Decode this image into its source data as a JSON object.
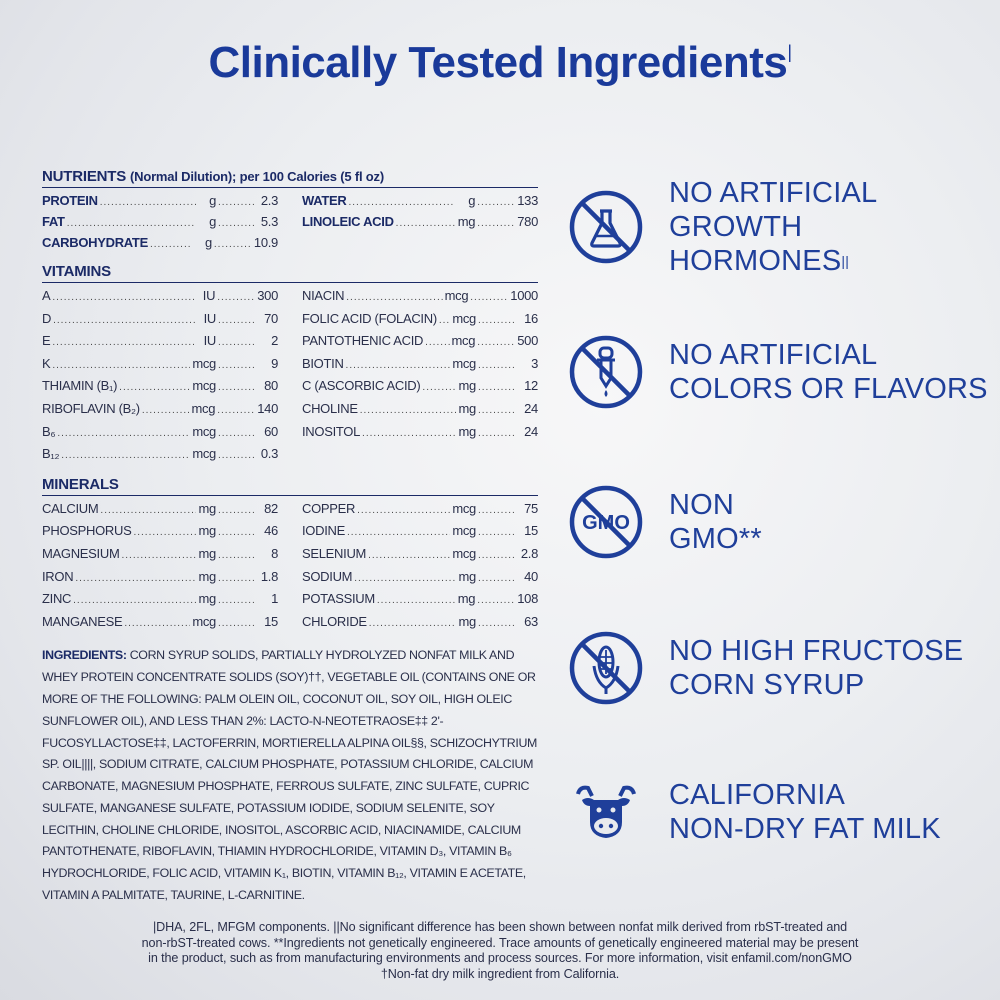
{
  "title": "Clinically Tested Ingredients",
  "title_mark": "|",
  "nutrients": {
    "heading": "NUTRIENTS",
    "subheading": "(Normal Dilution); per 100 Calories (5 fl oz)",
    "left": [
      {
        "name": "PROTEIN",
        "unit": "g",
        "value": "2.3"
      },
      {
        "name": "FAT",
        "unit": "g",
        "value": "5.3"
      },
      {
        "name": "CARBOHYDRATE",
        "unit": "g",
        "value": "10.9"
      }
    ],
    "right": [
      {
        "name": "WATER",
        "unit": "g",
        "value": "133"
      },
      {
        "name": "LINOLEIC ACID",
        "unit": "mg",
        "value": "780"
      }
    ]
  },
  "vitamins": {
    "heading": "VITAMINS",
    "left": [
      {
        "name": "A",
        "unit": "IU",
        "value": "300"
      },
      {
        "name": "D",
        "unit": "IU",
        "value": "70"
      },
      {
        "name": "E",
        "unit": "IU",
        "value": "2"
      },
      {
        "name": "K",
        "unit": "mcg",
        "value": "9"
      },
      {
        "name": "THIAMIN (B₁)",
        "unit": "mcg",
        "value": "80"
      },
      {
        "name": "RIBOFLAVIN (B₂)",
        "unit": "mcg",
        "value": "140"
      },
      {
        "name": "B₆",
        "unit": "mcg",
        "value": "60"
      },
      {
        "name": "B₁₂",
        "unit": "mcg",
        "value": "0.3"
      }
    ],
    "right": [
      {
        "name": "NIACIN",
        "unit": "mcg",
        "value": "1000"
      },
      {
        "name": "FOLIC ACID (FOLACIN)",
        "unit": "mcg",
        "value": "16"
      },
      {
        "name": "PANTOTHENIC ACID",
        "unit": "mcg",
        "value": "500"
      },
      {
        "name": "BIOTIN",
        "unit": "mcg",
        "value": "3"
      },
      {
        "name": "C (ASCORBIC ACID)",
        "unit": "mg",
        "value": "12"
      },
      {
        "name": "CHOLINE",
        "unit": "mg",
        "value": "24"
      },
      {
        "name": "INOSITOL",
        "unit": "mg",
        "value": "24"
      }
    ]
  },
  "minerals": {
    "heading": "MINERALS",
    "left": [
      {
        "name": "CALCIUM",
        "unit": "mg",
        "value": "82"
      },
      {
        "name": "PHOSPHORUS",
        "unit": "mg",
        "value": "46"
      },
      {
        "name": "MAGNESIUM",
        "unit": "mg",
        "value": "8"
      },
      {
        "name": "IRON",
        "unit": "mg",
        "value": "1.8"
      },
      {
        "name": "ZINC",
        "unit": "mg",
        "value": "1"
      },
      {
        "name": "MANGANESE",
        "unit": "mcg",
        "value": "15"
      }
    ],
    "right": [
      {
        "name": "COPPER",
        "unit": "mcg",
        "value": "75"
      },
      {
        "name": "IODINE",
        "unit": "mcg",
        "value": "15"
      },
      {
        "name": "SELENIUM",
        "unit": "mcg",
        "value": "2.8"
      },
      {
        "name": "SODIUM",
        "unit": "mg",
        "value": "40"
      },
      {
        "name": "POTASSIUM",
        "unit": "mg",
        "value": "108"
      },
      {
        "name": "CHLORIDE",
        "unit": "mg",
        "value": "63"
      }
    ]
  },
  "ingredients": {
    "label": "INGREDIENTS:",
    "text": "CORN SYRUP SOLIDS, PARTIALLY HYDROLYZED NONFAT MILK AND WHEY PROTEIN CONCENTRATE SOLIDS (SOY)††, VEGETABLE OIL (CONTAINS ONE OR MORE OF THE FOLLOWING: PALM OLEIN OIL, COCONUT OIL, SOY OIL, HIGH OLEIC SUNFLOWER OIL), AND LESS THAN 2%: LACTO-N-NEOTETRAOSE‡‡ 2'-FUCOSYLLACTOSE‡‡, LACTOFERRIN, MORTIERELLA ALPINA OIL§§, SCHIZOCHYTRIUM SP. OIL||||, SODIUM CITRATE, CALCIUM PHOSPHATE, POTASSIUM CHLORIDE, CALCIUM CARBONATE, MAGNESIUM PHOSPHATE, FERROUS SULFATE, ZINC SULFATE, CUPRIC SULFATE, MANGANESE SULFATE, POTASSIUM IODIDE, SODIUM SELENITE, SOY LECITHIN, CHOLINE CHLORIDE, INOSITOL, ASCORBIC ACID, NIACINAMIDE, CALCIUM PANTOTHENATE, RIBOFLAVIN, THIAMIN HYDROCHLORIDE, VITAMIN D₃, VITAMIN B₆ HYDROCHLORIDE, FOLIC ACID, VITAMIN K₁, BIOTIN, VITAMIN B₁₂, VITAMIN E ACETATE, VITAMIN A PALMITATE, TAURINE, L-CARNITINE."
  },
  "claims": [
    {
      "icon": "no-flask-icon",
      "line1": "NO ARTIFICIAL",
      "line2": "GROWTH",
      "line3": "HORMONES",
      "mark": "||"
    },
    {
      "icon": "no-dropper-icon",
      "line1": "NO ARTIFICIAL",
      "line2": "COLORS OR FLAVORS",
      "line3": "",
      "mark": ""
    },
    {
      "icon": "no-gmo-icon",
      "icon_text": "GMO",
      "line1": "NON",
      "line2": "GMO**",
      "line3": "",
      "mark": ""
    },
    {
      "icon": "no-corn-icon",
      "line1": "NO HIGH FRUCTOSE",
      "line2": "CORN SYRUP",
      "line3": "",
      "mark": ""
    },
    {
      "icon": "cow-icon",
      "line1": "CALIFORNIA",
      "line2": "NON-DRY FAT MILK",
      "line3": "",
      "mark": ""
    }
  ],
  "footer": {
    "line1": "|DHA, 2FL, MFGM components. ||No significant difference has been shown between nonfat milk derived from rbST-treated and",
    "line2": "non-rbST-treated cows. **Ingredients not genetically engineered. Trace amounts of genetically engineered material may be present",
    "line3": "in the product, such as from manufacturing environments and process sources. For more information, visit enfamil.com/nonGMO",
    "line4": "†Non-fat dry milk ingredient from California."
  },
  "colors": {
    "brand_blue": "#1f3f9a",
    "text_dark": "#2a2f4a"
  }
}
